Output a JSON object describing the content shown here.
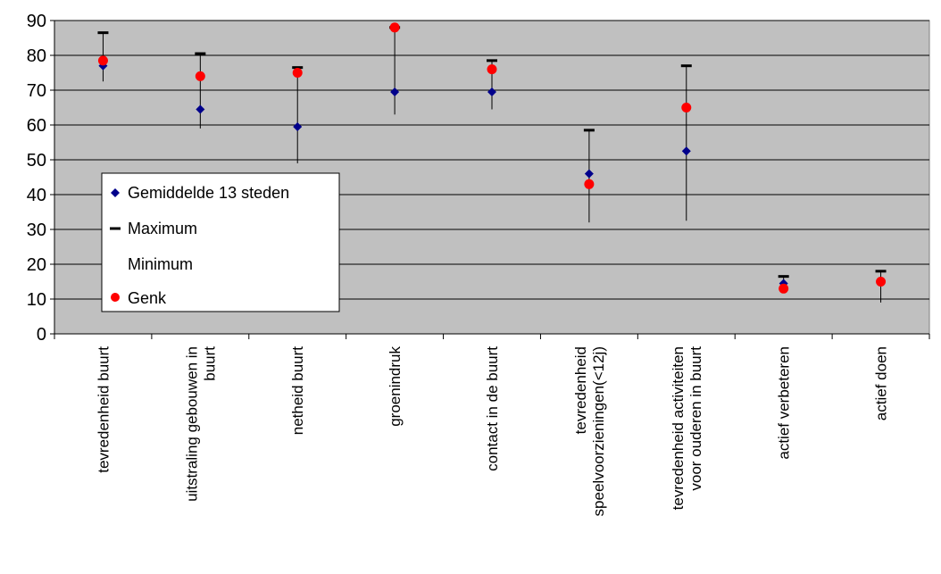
{
  "chart_data": {
    "type": "scatter",
    "ylim": [
      0,
      90
    ],
    "yticks": [
      0,
      10,
      20,
      30,
      40,
      50,
      60,
      70,
      80,
      90
    ],
    "grid": true,
    "legend_position": "left-middle",
    "categories": [
      [
        "tevredenheid buurt"
      ],
      [
        "uitstraling gebouwen in",
        "buurt"
      ],
      [
        "netheid buurt"
      ],
      [
        "groenindruk"
      ],
      [
        "contact in de buurt"
      ],
      [
        "tevredenheid",
        "speelvoorzieningen(<12j)"
      ],
      [
        "tevredenheid activiteiten",
        "voor ouderen in buurt"
      ],
      [
        "actief verbeteren"
      ],
      [
        "actief doen"
      ]
    ],
    "series": [
      {
        "name": "Gemiddelde 13 steden",
        "marker": "diamond",
        "color": "#00008b",
        "values": [
          77,
          64.5,
          59.5,
          69.5,
          69.5,
          46,
          52.5,
          14.5,
          15
        ]
      },
      {
        "name": "Maximum",
        "marker": "dash",
        "color": "#000000",
        "values": [
          86.5,
          80.5,
          76.5,
          88,
          78.5,
          58.5,
          77,
          16.5,
          18
        ]
      },
      {
        "name": "Minimum",
        "marker": "none",
        "color": "#000000",
        "values": [
          72.5,
          59,
          49,
          63,
          64.5,
          32,
          32.5,
          12.5,
          9
        ]
      },
      {
        "name": "Genk",
        "marker": "circle",
        "color": "#ff0000",
        "values": [
          78.5,
          74,
          75,
          88,
          76,
          43,
          65,
          13,
          15
        ]
      }
    ]
  }
}
